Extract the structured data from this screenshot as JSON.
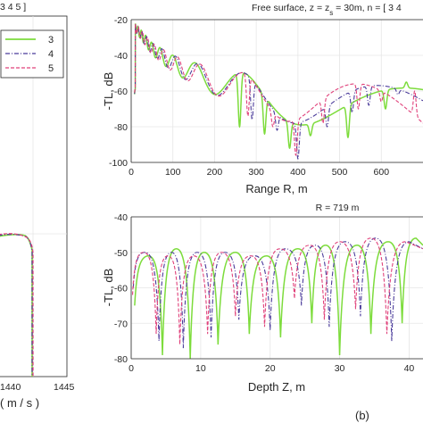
{
  "figure_label": "(b)",
  "left_panel": {
    "title_fragment": "3 4 5 ]",
    "xaxis": {
      "label_fragment": "( m / s )",
      "tick_labels": [
        "1440",
        "1445"
      ]
    },
    "legend": [
      {
        "label": "3",
        "color": "#7ddc3c",
        "style": "solid"
      },
      {
        "label": "4",
        "color": "#4a3b9a",
        "style": "dashdot"
      },
      {
        "label": "5",
        "color": "#e0407a",
        "style": "dashed"
      }
    ]
  },
  "chart_data": [
    {
      "type": "line",
      "title": "Free surface, z = z",
      "title_sub": "s",
      "title_rest": " = 30m, n = [ 3 4",
      "xlabel": "Range R, m",
      "ylabel": "-TL, dB",
      "xlim": [
        0,
        700
      ],
      "ylim": [
        -100,
        -20
      ],
      "xticks": [
        0,
        100,
        200,
        300,
        400,
        500,
        600
      ],
      "yticks": [
        -20,
        -40,
        -60,
        -80,
        -100
      ],
      "grid": true,
      "series": [
        {
          "name": "3",
          "color": "#7ddc3c",
          "x": [
            10,
            50,
            100,
            150,
            200,
            250,
            300,
            350,
            400,
            450,
            500,
            550,
            600,
            650,
            700
          ],
          "y": [
            -22,
            -33,
            -40,
            -44,
            -47,
            -49,
            -51,
            -52,
            -53,
            -54,
            -55,
            -56,
            -57,
            -58,
            -59
          ],
          "nulls": [
            [
              260,
              -80
            ],
            [
              320,
              -84
            ],
            [
              380,
              -92
            ],
            [
              430,
              -85
            ],
            [
              520,
              -86
            ],
            [
              610,
              -70
            ],
            [
              660,
              -55
            ]
          ]
        },
        {
          "name": "4",
          "color": "#4a3b9a",
          "x": [
            10,
            50,
            100,
            150,
            200,
            250,
            300,
            350,
            400,
            450,
            500,
            550,
            600,
            650,
            700
          ],
          "y": [
            -22,
            -33,
            -40,
            -44,
            -47,
            -49,
            -51,
            -52,
            -53,
            -54,
            -55,
            -56,
            -57,
            -58,
            -59
          ],
          "nulls": [
            [
              290,
              -76
            ],
            [
              350,
              -82
            ],
            [
              400,
              -98
            ],
            [
              470,
              -80
            ],
            [
              530,
              -72
            ],
            [
              570,
              -68
            ],
            [
              640,
              -62
            ]
          ]
        },
        {
          "name": "5",
          "color": "#e0407a",
          "x": [
            10,
            50,
            100,
            150,
            200,
            250,
            300,
            350,
            400,
            450,
            500,
            550,
            600,
            650,
            700
          ],
          "y": [
            -22,
            -33,
            -40,
            -44,
            -47,
            -49,
            -51,
            -52,
            -53,
            -54,
            -55,
            -56,
            -57,
            -58,
            -59
          ],
          "nulls": [
            [
              280,
              -74
            ],
            [
              340,
              -80
            ],
            [
              395,
              -96
            ],
            [
              460,
              -78
            ],
            [
              545,
              -70
            ],
            [
              600,
              -66
            ],
            [
              680,
              -60
            ]
          ]
        }
      ]
    },
    {
      "type": "line",
      "title": "R = 719 m",
      "xlabel": "Depth Z, m",
      "ylabel": "-TL, dB",
      "xlim": [
        0,
        42
      ],
      "ylim": [
        -80,
        -40
      ],
      "xticks": [
        0,
        10,
        20,
        30,
        40
      ],
      "yticks": [
        -40,
        -50,
        -60,
        -70,
        -80
      ],
      "grid": true,
      "series": [
        {
          "name": "3",
          "color": "#7ddc3c",
          "nulls": [
            [
              0.5,
              -65
            ],
            [
              4.5,
              -79
            ],
            [
              8.5,
              -80
            ],
            [
              12.5,
              -76
            ],
            [
              17,
              -73
            ],
            [
              21.5,
              -74
            ],
            [
              26,
              -70
            ],
            [
              30,
              -79
            ],
            [
              34.5,
              -73
            ],
            [
              39,
              -70
            ]
          ],
          "peaks": [
            [
              2.5,
              -51
            ],
            [
              6.5,
              -49
            ],
            [
              10.5,
              -50
            ],
            [
              15,
              -50
            ],
            [
              19.5,
              -51
            ],
            [
              24,
              -49
            ],
            [
              28,
              -48
            ],
            [
              32.5,
              -48
            ],
            [
              37,
              -47
            ],
            [
              41,
              -46
            ]
          ]
        },
        {
          "name": "4",
          "color": "#4a3b9a",
          "nulls": [
            [
              0.3,
              -60
            ],
            [
              4,
              -75
            ],
            [
              7.5,
              -77
            ],
            [
              11.5,
              -74
            ],
            [
              15.5,
              -69
            ],
            [
              20,
              -72
            ],
            [
              24.5,
              -65
            ],
            [
              28.5,
              -71
            ],
            [
              33,
              -68
            ],
            [
              37.5,
              -75
            ]
          ],
          "peaks": [
            [
              2,
              -50
            ],
            [
              5.8,
              -50
            ],
            [
              9.5,
              -50
            ],
            [
              13.5,
              -50
            ],
            [
              17.8,
              -51
            ],
            [
              22.2,
              -49
            ],
            [
              26.5,
              -48
            ],
            [
              30.8,
              -47
            ],
            [
              35.2,
              -46
            ],
            [
              40,
              -47
            ]
          ]
        },
        {
          "name": "5",
          "color": "#e0407a",
          "nulls": [
            [
              0.2,
              -62
            ],
            [
              3.6,
              -73
            ],
            [
              7,
              -76
            ],
            [
              11,
              -73
            ],
            [
              15,
              -68
            ],
            [
              19.2,
              -71
            ],
            [
              23.5,
              -63
            ],
            [
              27.8,
              -69
            ],
            [
              32.3,
              -66
            ],
            [
              36.8,
              -73
            ]
          ],
          "peaks": [
            [
              1.8,
              -50
            ],
            [
              5.3,
              -51
            ],
            [
              9,
              -51
            ],
            [
              13,
              -50
            ],
            [
              17.2,
              -51
            ],
            [
              21.4,
              -49
            ],
            [
              25.7,
              -48
            ],
            [
              30,
              -47
            ],
            [
              34.5,
              -46
            ],
            [
              39.5,
              -47
            ]
          ]
        }
      ]
    }
  ]
}
